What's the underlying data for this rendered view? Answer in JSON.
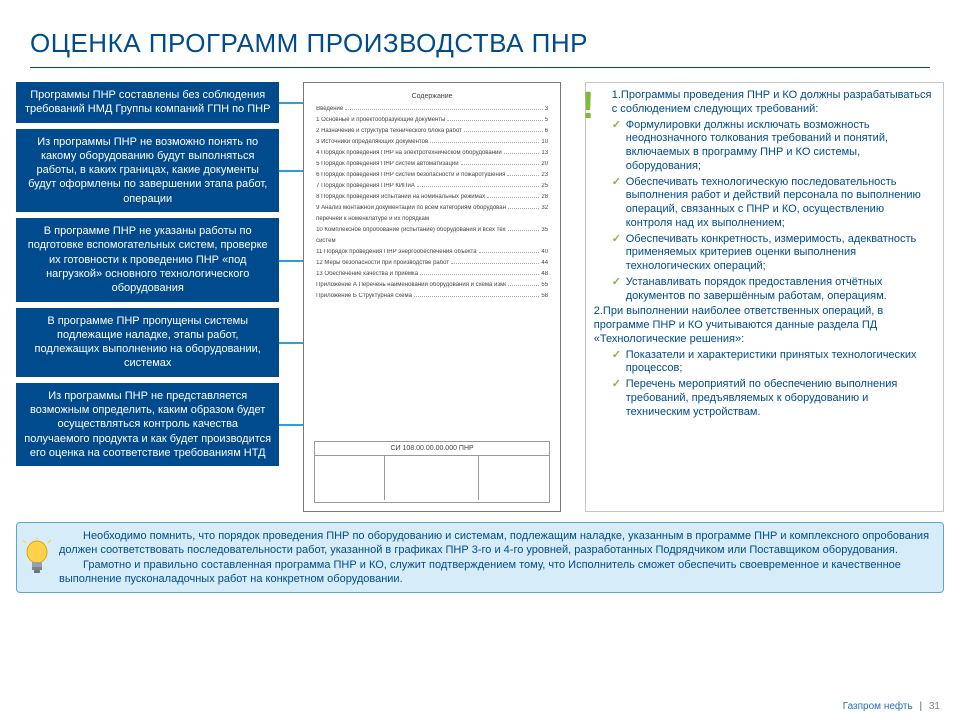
{
  "title": "ОЦЕНКА ПРОГРАММ ПРОИЗВОДСТВА ПНР",
  "colors": {
    "brand_blue": "#004b8d",
    "arrow_blue": "#2aa0d8",
    "check_green": "#7fba3c",
    "note_bg": "#d6ecf9",
    "note_border": "#5aa5d6"
  },
  "issues": [
    "Программы ПНР составлены без соблюдения требований НМД Группы компаний ГПН по ПНР",
    "Из программы ПНР не возможно понять по какому оборудованию будут выполняться работы, в каких границах, какие документы будут оформлены по завершении этапа работ, операции",
    "В программе ПНР не указаны работы по подготовке вспомогательных систем, проверке их готовности к проведению ПНР «под нагрузкой» основного технологического оборудования",
    "В программе ПНР пропущены системы подлежащие наладке, этапы работ, подлежащих выполнению на оборудовании, системах",
    "Из программы ПНР не представляется возможным определить, каким образом будет осуществляться контроль качества получаемого продукта и как будет производится его оценка на соответствие требованиям НТД"
  ],
  "doc": {
    "heading": "Содержание",
    "lines": [
      {
        "t": "Введение",
        "p": "3"
      },
      {
        "t": "1 Основные и проектообразующие документы",
        "p": "5"
      },
      {
        "t": "2 Назначение и структура технического блока работ",
        "p": "6"
      },
      {
        "t": "3 Источники определяющих документов",
        "p": "10"
      },
      {
        "t": "4 Порядок проведения ПНР на электротехническом оборудовании",
        "p": "13"
      },
      {
        "t": "5 Порядок проведения ПНР систем автоматизации",
        "p": "20"
      },
      {
        "t": "6 Порядок проведения ПНР систем безопасности и пожаротушения",
        "p": "23"
      },
      {
        "t": "7 Порядок проведения ПНР КИПиА",
        "p": "25"
      },
      {
        "t": "8 Порядок проведения испытаний на номинальных режимах",
        "p": "28"
      },
      {
        "t": "9 Анализ монтажной документации по всем категориям оборудования",
        "p": "32"
      },
      {
        "t": "    перечней к номенклатуре и их порядкам",
        "p": ""
      },
      {
        "t": "10 Комплексное опробование (испытание) оборудования и всех технологических",
        "p": "35"
      },
      {
        "t": "    систем",
        "p": ""
      },
      {
        "t": "11 Порядок проведения ПНР энергообеспечения объекта",
        "p": "40"
      },
      {
        "t": "12 Меры безопасности при производстве работ",
        "p": "44"
      },
      {
        "t": "13 Обеспечение качества и приёмка",
        "p": "48"
      },
      {
        "t": "Приложение А  Перечень наименований оборудования и схема изменений",
        "p": "55"
      },
      {
        "t": "Приложение Б  Структурная схема",
        "p": "58"
      }
    ],
    "code": "СИ 108.00.00.00.000 ПНР"
  },
  "req": {
    "intro1": "1.Программы проведения ПНР и КО должны разрабатываться с соблюдением следующих требований:",
    "items1": [
      "Формулировки должны исключать возможность неоднозначного толкования требований и понятий, включаемых в программу ПНР и КО системы, оборудования;",
      "Обеспечивать технологическую последовательность выполнения работ и действий персонала по выполнению операций, связанных с ПНР и КО, осуществлению контроля над их выполнением;",
      "Обеспечивать конкретность, измеримость, адекватность применяемых критериев оценки выполнения технологических операций;",
      "Устанавливать порядок предоставления отчётных документов по завершённым работам, операциям."
    ],
    "intro2": "2.При выполнении наиболее ответственных операций, в программе ПНР и КО учитываются данные раздела ПД «Технологические решения»:",
    "items2": [
      "Показатели и характеристики принятых технологических процессов;",
      "Перечень мероприятий по обеспечению выполнения требований, предъявляемых к оборудованию и техническим устройствам."
    ]
  },
  "note": {
    "p1": "Необходимо помнить, что порядок проведения ПНР по оборудованию и системам, подлежащим наладке, указанным в программе ПНР и комплексного опробования должен соответствовать последовательности работ, указанной в графиках ПНР 3-го и 4-го уровней, разработанных Подрядчиком или Поставщиком оборудования.",
    "p2": "Грамотно и правильно составленная программа ПНР и КО, служит подтверждением тому, что Исполнитель сможет обеспечить своевременное и качественное выполнение пусконаладочных работ на конкретном оборудовании."
  },
  "footer": {
    "brand": "Газпром нефть",
    "page": "31"
  }
}
